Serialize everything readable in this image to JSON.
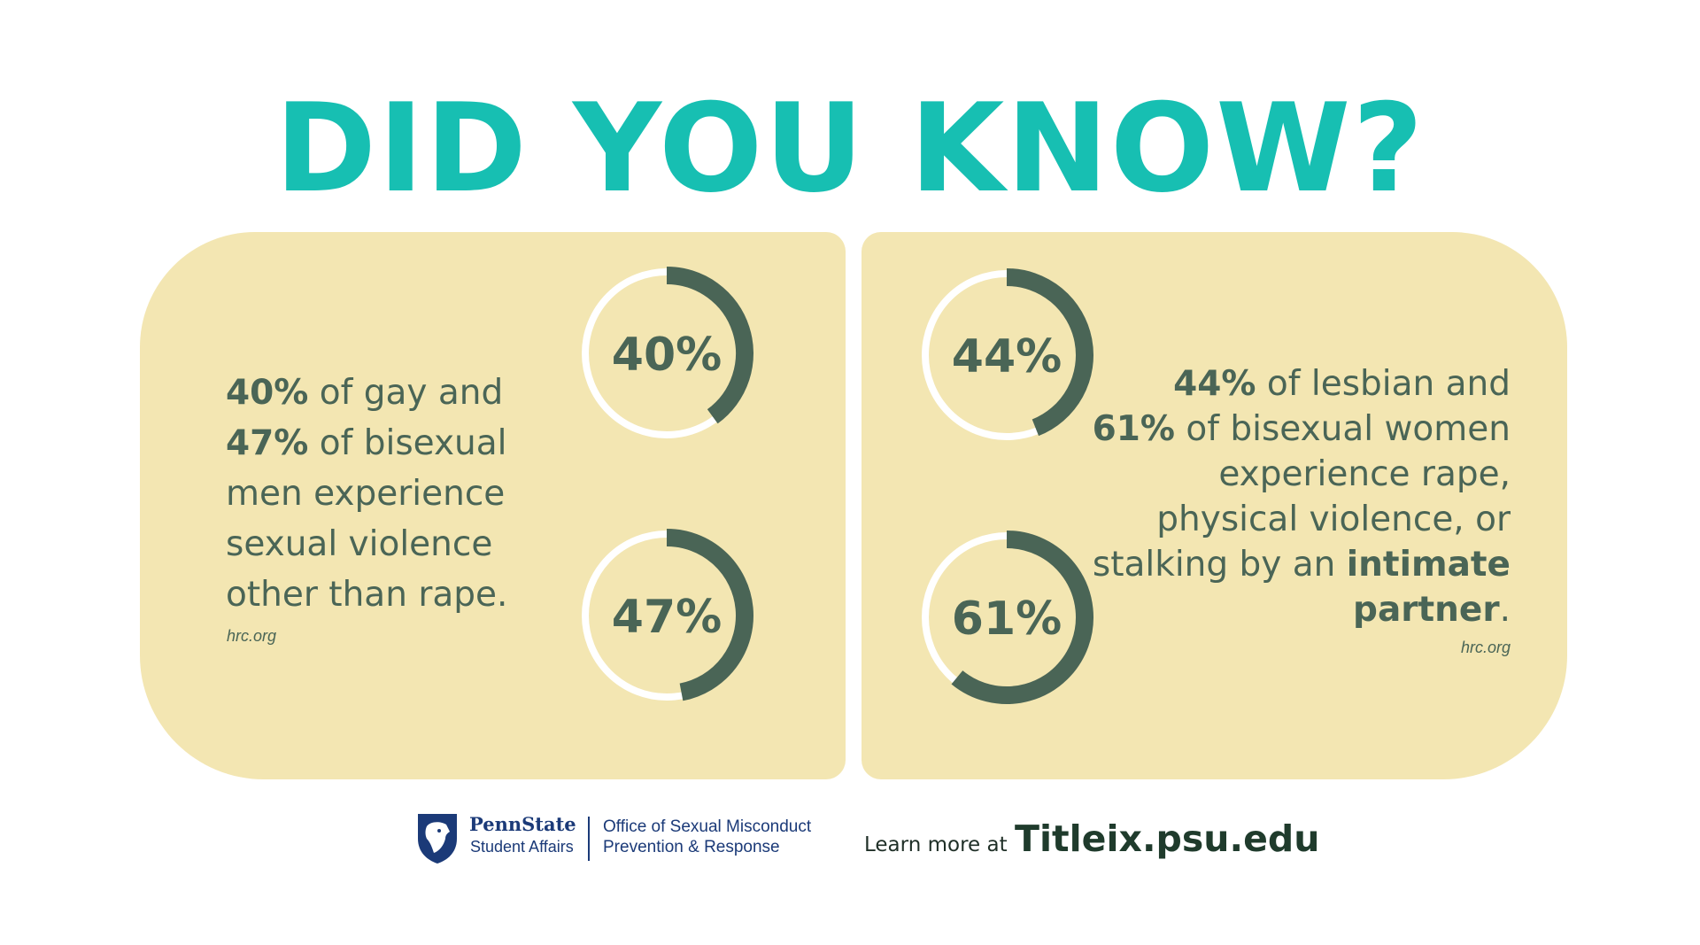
{
  "headline": "DID YOU KNOW?",
  "panels": {
    "left": {
      "stat_a": "40%",
      "text_a": " of gay and ",
      "stat_b": "47%",
      "text_b": " of bisexual men experience sexual violence other than rape.",
      "source": "hrc.org",
      "rings": [
        {
          "label": "40%",
          "value": 40
        },
        {
          "label": "47%",
          "value": 47
        }
      ]
    },
    "right": {
      "stat_a": "44%",
      "text_a": " of lesbian and ",
      "stat_b": "61%",
      "text_b": " of bisexual women experience rape, physical violence, or stalking by an ",
      "emphasis": "intimate partner",
      "end": ".",
      "source": "hrc.org",
      "rings": [
        {
          "label": "44%",
          "value": 44
        },
        {
          "label": "61%",
          "value": 61
        }
      ]
    }
  },
  "footer": {
    "brand": "PennState",
    "unit": "Student Affairs",
    "office_line1": "Office of Sexual Misconduct",
    "office_line2": "Prevention & Response",
    "learn_more": "Learn more at",
    "url": "Titleix.psu.edu"
  },
  "colors": {
    "headline": "#17bfb2",
    "panel": "#f3e6b2",
    "ring_arc": "#4a6556",
    "ring_track": "#ffffff",
    "text": "#4a6556",
    "brand_blue": "#1b3a78"
  }
}
